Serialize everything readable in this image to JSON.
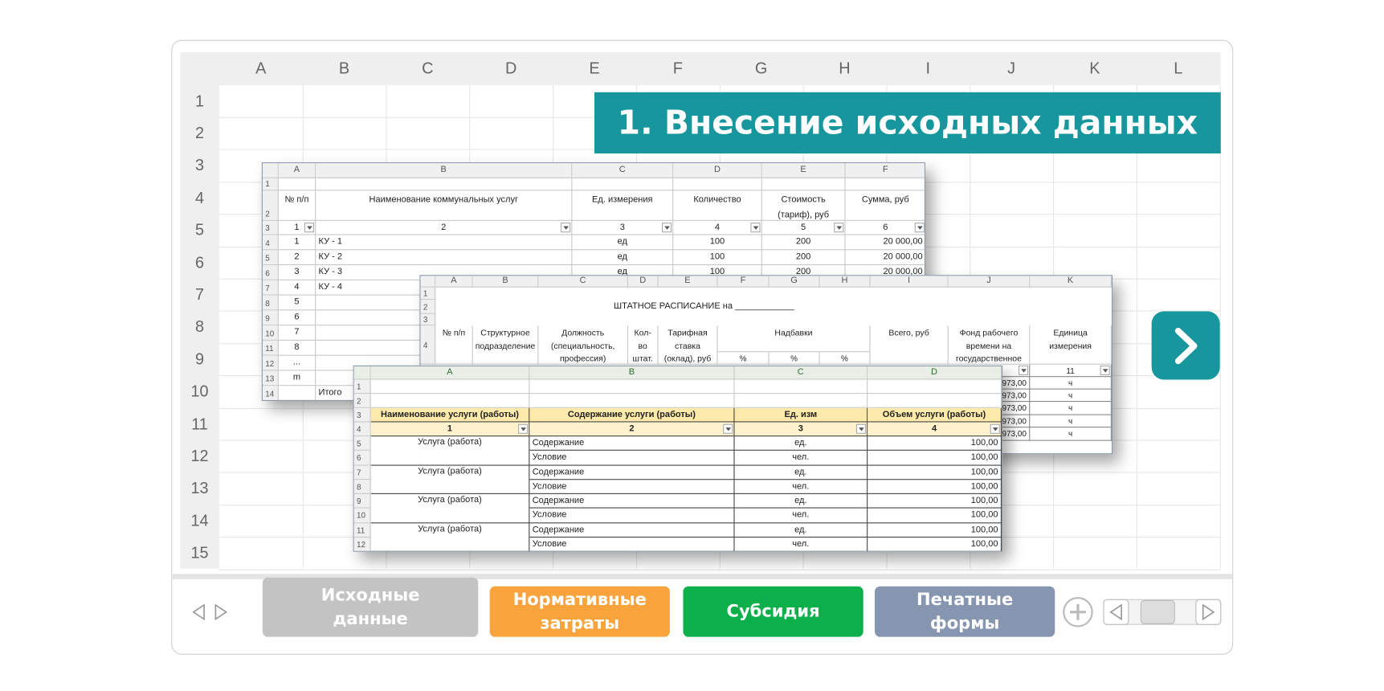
{
  "grid": {
    "columns": [
      "A",
      "B",
      "C",
      "D",
      "E",
      "F",
      "G",
      "H",
      "I",
      "J",
      "K",
      "L"
    ],
    "rows": [
      1,
      2,
      3,
      4,
      5,
      6,
      7,
      8,
      9,
      10,
      11,
      12,
      13,
      14,
      15
    ]
  },
  "banner": "1. Внесение исходных данных",
  "sheet1": {
    "columns": [
      "A",
      "B",
      "C",
      "D",
      "E",
      "F"
    ],
    "rows": [
      {
        "number": 1,
        "cells": []
      },
      {
        "number": 2,
        "cells": [
          "№ п/п",
          "Наименование коммунальных услуг",
          "Ед. измерения",
          "Количество",
          "Стоимость (тариф), руб",
          "Сумма, руб"
        ]
      },
      {
        "number": 3,
        "cells": [
          1,
          2,
          3,
          4,
          5,
          6
        ]
      },
      {
        "number": 4,
        "cells": [
          1,
          "КУ - 1",
          "ед",
          100,
          200,
          "20 000,00"
        ]
      },
      {
        "number": 5,
        "cells": [
          2,
          "КУ - 2",
          "ед",
          100,
          200,
          "20 000,00"
        ]
      },
      {
        "number": 6,
        "cells": [
          3,
          "КУ - 3",
          "ед",
          100,
          200,
          "20 000,00"
        ]
      },
      {
        "number": 7,
        "cells": [
          4,
          "КУ - 4"
        ]
      },
      {
        "number": 8,
        "cells": [
          5
        ]
      },
      {
        "number": 9,
        "cells": [
          6
        ]
      },
      {
        "number": 10,
        "cells": [
          7
        ]
      },
      {
        "number": 11,
        "cells": [
          8
        ]
      },
      {
        "number": 12,
        "cells": [
          "..."
        ]
      },
      {
        "number": 13,
        "cells": [
          "m"
        ]
      },
      {
        "number": 14,
        "cells": [
          null,
          "Итого"
        ]
      }
    ]
  },
  "sheet2": {
    "columns": [
      "A",
      "B",
      "C",
      "D",
      "E",
      "F",
      "G",
      "H",
      "I",
      "J",
      "K"
    ],
    "numbers": [
      1,
      2,
      3,
      4
    ],
    "title": "ШТАТНОЕ РАСПИСАНИЕ на ____________",
    "headers": [
      "№ п/п",
      "Структурное подразделение",
      "Должность (специальность, профессия)",
      "Кол-во штат. ед.",
      "Тарифная ставка (оклад), руб",
      "Надбавки",
      "Всего, руб",
      "Фонд рабочего времени на государственное",
      "Единица измерения"
    ],
    "subheaders": [
      "%",
      "%",
      "%"
    ],
    "tail_rows": [
      [
        null,
        11
      ],
      [
        "973,00",
        "ч"
      ],
      [
        "973,00",
        "ч"
      ],
      [
        "973,00",
        "ч"
      ],
      [
        "973,00",
        "ч"
      ],
      [
        "973,00",
        "ч"
      ]
    ]
  },
  "sheet3": {
    "columns": [
      "A",
      "B",
      "C",
      "D"
    ],
    "rows": [
      {
        "number": 1,
        "cells": []
      },
      {
        "number": 2,
        "cells": []
      },
      {
        "number": 3,
        "cells": [
          "Наименование услуги (работы)",
          "Содержание услуги (работы)",
          "Ед. изм",
          "Объем  услуги (работы)"
        ]
      },
      {
        "number": 4,
        "cells": [
          1,
          2,
          3,
          4
        ]
      },
      {
        "number": 5,
        "cells": [
          "Услуга (работа)",
          "Содержание",
          "ед.",
          "100,00"
        ]
      },
      {
        "number": 6,
        "cells": [
          null,
          "Условие",
          "чел.",
          "100,00"
        ]
      },
      {
        "number": 7,
        "cells": [
          "Услуга (работа)",
          "Содержание",
          "ед.",
          "100,00"
        ]
      },
      {
        "number": 8,
        "cells": [
          null,
          "Условие",
          "чел.",
          "100,00"
        ]
      },
      {
        "number": 9,
        "cells": [
          "Услуга (работа)",
          "Содержание",
          "ед.",
          "100,00"
        ]
      },
      {
        "number": 10,
        "cells": [
          null,
          "Условие",
          "чел.",
          "100,00"
        ]
      },
      {
        "number": 11,
        "cells": [
          "Услуга (работа)",
          "Содержание",
          "ед.",
          "100,00"
        ]
      },
      {
        "number": 12,
        "cells": [
          null,
          "Условие",
          "чел.",
          "100,00"
        ]
      }
    ]
  },
  "tabs": [
    {
      "lines": [
        "Исходные",
        "данные"
      ]
    },
    {
      "lines": [
        "Нормативные",
        "затраты"
      ]
    },
    {
      "lines": [
        "Субсидия"
      ]
    },
    {
      "lines": [
        "Печатные",
        "формы"
      ]
    }
  ]
}
